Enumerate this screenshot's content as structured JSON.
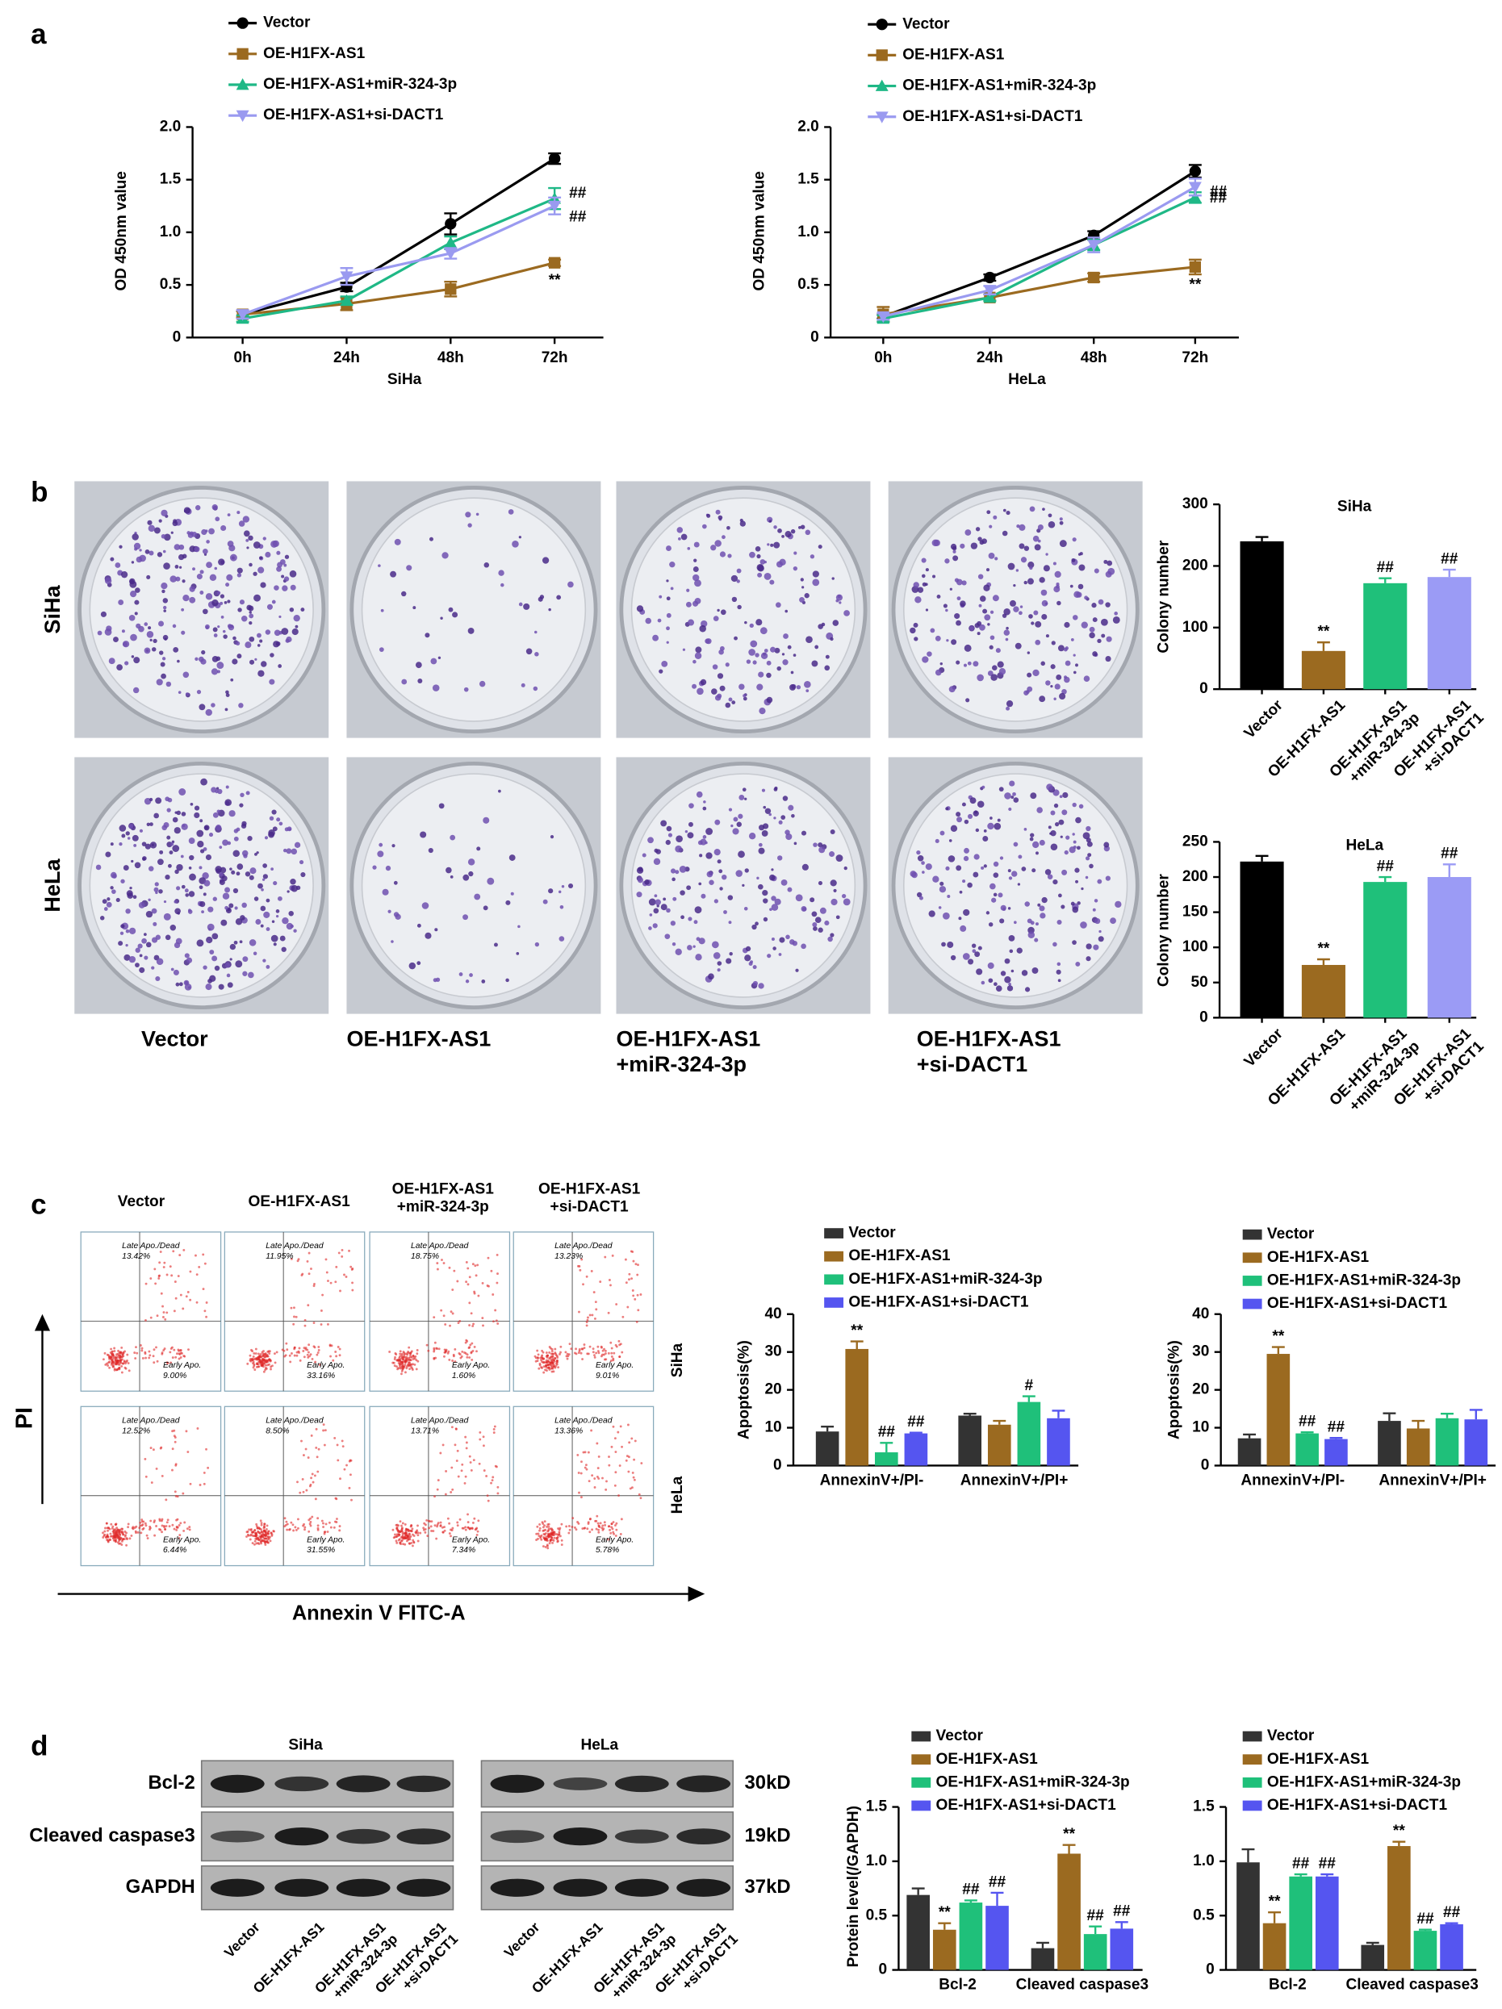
{
  "panel_labels": [
    "a",
    "b",
    "c",
    "d"
  ],
  "colony": {
    "rows": [
      "SiHa",
      "HeLa"
    ],
    "columns": [
      "Vector",
      "OE-H1FX-AS1",
      "OE-H1FX-AS1\n+miR-324-3p",
      "OE-H1FX-AS1\n+si-DACT1"
    ]
  },
  "flow": {
    "columns": [
      "Vector",
      "OE-H1FX-AS1",
      "OE-H1FX-AS1\n+miR-324-3p",
      "OE-H1FX-AS1\n+si-DACT1"
    ],
    "rows": [
      "SiHa",
      "HeLa"
    ],
    "late_label": "Late Apo./Dead",
    "early_label": "Early Apo.",
    "late": [
      [
        "13.42%",
        "11.95%",
        "18.75%",
        "13.23%"
      ],
      [
        "12.52%",
        "8.50%",
        "13.71%",
        "13.36%"
      ]
    ],
    "early": [
      [
        "9.00%",
        "33.16%",
        "1.60%",
        "9.01%"
      ],
      [
        "6.44%",
        "31.55%",
        "7.34%",
        "5.78%"
      ]
    ],
    "y_axis": "PI",
    "x_axis": "Annexin V FITC-A"
  },
  "western": {
    "cell_lines": [
      "SiHa",
      "HeLa"
    ],
    "proteins": [
      "Bcl-2",
      "Cleaved caspase3",
      "GAPDH"
    ],
    "sizes": [
      "30kD",
      "19kD",
      "37kD"
    ],
    "lanes": [
      "Vector",
      "OE-H1FX-AS1",
      "OE-H1FX-AS1\n+miR-324-3p",
      "OE-H1FX-AS1\n+si-DACT1"
    ]
  },
  "chart_data": [
    {
      "type": "line",
      "x_label": "SiHa",
      "y_label": "OD 450nm value",
      "categories": [
        "0h",
        "24h",
        "48h",
        "72h"
      ],
      "ylim": [
        0,
        2
      ],
      "yticks": [
        0,
        0.5,
        {
          "value": 1,
          "label": "1.0"
        },
        1.5,
        {
          "value": 2,
          "label": "2.0"
        }
      ],
      "series": [
        {
          "name": "Vector",
          "color": "#000000",
          "marker": "circle",
          "values": [
            0.22,
            0.48,
            1.08,
            1.7
          ],
          "errors": [
            0.03,
            0.04,
            0.1,
            0.05
          ]
        },
        {
          "name": "OE-H1FX-AS1",
          "color": "#9b6a20",
          "marker": "square",
          "values": [
            0.22,
            0.32,
            0.46,
            0.71
          ],
          "errors": [
            0.03,
            0.06,
            0.07,
            0.03
          ],
          "annotations": [
            null,
            null,
            null,
            "**"
          ]
        },
        {
          "name": "OE-H1FX-AS1+miR-324-3p",
          "color": "#1fb886",
          "marker": "triangle-up",
          "values": [
            0.18,
            0.35,
            0.9,
            1.32
          ],
          "errors": [
            0.03,
            0.04,
            0.06,
            0.1
          ],
          "annotations": [
            null,
            null,
            null,
            "##"
          ]
        },
        {
          "name": "OE-H1FX-AS1+si-DACT1",
          "color": "#9a9af0",
          "marker": "triangle-down",
          "values": [
            0.22,
            0.58,
            0.8,
            1.25
          ],
          "errors": [
            0.04,
            0.08,
            0.05,
            0.08
          ],
          "annotations": [
            null,
            null,
            null,
            "##"
          ]
        }
      ]
    },
    {
      "type": "line",
      "x_label": "HeLa",
      "y_label": "OD 450nm value",
      "categories": [
        "0h",
        "24h",
        "48h",
        "72h"
      ],
      "ylim": [
        0,
        2
      ],
      "yticks": [
        0,
        0.5,
        {
          "value": 1,
          "label": "1.0"
        },
        1.5,
        {
          "value": 2,
          "label": "2.0"
        }
      ],
      "series": [
        {
          "name": "Vector",
          "color": "#000000",
          "marker": "circle",
          "values": [
            0.2,
            0.57,
            0.97,
            1.58
          ],
          "errors": [
            0.02,
            0.03,
            0.04,
            0.06
          ]
        },
        {
          "name": "OE-H1FX-AS1",
          "color": "#9b6a20",
          "marker": "square",
          "values": [
            0.22,
            0.38,
            0.57,
            0.67
          ],
          "errors": [
            0.07,
            0.03,
            0.04,
            0.07
          ],
          "annotations": [
            null,
            null,
            null,
            "**"
          ]
        },
        {
          "name": "OE-H1FX-AS1+miR-324-3p",
          "color": "#1fb886",
          "marker": "triangle-up",
          "values": [
            0.18,
            0.38,
            0.88,
            1.33
          ],
          "errors": [
            0.03,
            0.03,
            0.05,
            0.05
          ],
          "annotations": [
            null,
            null,
            null,
            "##"
          ]
        },
        {
          "name": "OE-H1FX-AS1+si-DACT1",
          "color": "#9a9af0",
          "marker": "triangle-down",
          "values": [
            0.2,
            0.45,
            0.88,
            1.43
          ],
          "errors": [
            0.03,
            0.04,
            0.07,
            0.08
          ],
          "annotations": [
            null,
            null,
            null,
            "##"
          ]
        }
      ]
    },
    {
      "type": "bar",
      "title": "SiHa",
      "y_label": "Colony number",
      "categories": [
        "Vector",
        "OE-H1FX-AS1",
        "OE-H1FX-AS1\n+miR-324-3p",
        "OE-H1FX-AS1\n+si-DACT1"
      ],
      "values": [
        240,
        62,
        172,
        182
      ],
      "errors": [
        7,
        14,
        8,
        12
      ],
      "annotations": [
        null,
        "**",
        "##",
        "##"
      ],
      "colors": [
        "#000000",
        "#9b6a20",
        "#1fc07a",
        "#9b9bf5"
      ],
      "ylim": [
        0,
        300
      ],
      "yticks": [
        0,
        100,
        200,
        300
      ]
    },
    {
      "type": "bar",
      "title": "HeLa",
      "y_label": "Colony number",
      "categories": [
        "Vector",
        "OE-H1FX-AS1",
        "OE-H1FX-AS1\n+miR-324-3p",
        "OE-H1FX-AS1\n+si-DACT1"
      ],
      "values": [
        222,
        75,
        193,
        200
      ],
      "errors": [
        8,
        8,
        7,
        18
      ],
      "annotations": [
        null,
        "**",
        "##",
        "##"
      ],
      "colors": [
        "#000000",
        "#9b6a20",
        "#1fc07a",
        "#9b9bf5"
      ],
      "ylim": [
        0,
        250
      ],
      "yticks": [
        0,
        50,
        100,
        150,
        200,
        250
      ]
    },
    {
      "type": "bar",
      "y_label": "Apoptosis(%)",
      "categories": [
        "AnnexinV+/PI-",
        "AnnexinV+/PI+"
      ],
      "ylim": [
        0,
        40
      ],
      "yticks": [
        0,
        10,
        20,
        30,
        40
      ],
      "series": [
        {
          "name": "Vector",
          "color": "#333333",
          "values": [
            9,
            13.2
          ],
          "errors": [
            1.3,
            0.5
          ]
        },
        {
          "name": "OE-H1FX-AS1",
          "color": "#9b6a20",
          "values": [
            30.8,
            10.8
          ],
          "errors": [
            2,
            1
          ],
          "annotations": [
            "**",
            null
          ]
        },
        {
          "name": "OE-H1FX-AS1+miR-324-3p",
          "color": "#1fc07a",
          "values": [
            3.5,
            16.8
          ],
          "errors": [
            2.5,
            1.5
          ],
          "annotations": [
            "##",
            "#"
          ]
        },
        {
          "name": "OE-H1FX-AS1+si-DACT1",
          "color": "#5555f0",
          "values": [
            8.5,
            12.5
          ],
          "errors": [
            0.2,
            2
          ],
          "annotations": [
            "##",
            null
          ]
        }
      ]
    },
    {
      "type": "bar",
      "y_label": "Apoptosis(%)",
      "categories": [
        "AnnexinV+/PI-",
        "AnnexinV+/PI+"
      ],
      "ylim": [
        0,
        40
      ],
      "yticks": [
        0,
        10,
        20,
        30,
        40
      ],
      "series": [
        {
          "name": "Vector",
          "color": "#333333",
          "values": [
            7.2,
            11.8
          ],
          "errors": [
            1,
            2
          ]
        },
        {
          "name": "OE-H1FX-AS1",
          "color": "#9b6a20",
          "values": [
            29.5,
            9.8
          ],
          "errors": [
            1.8,
            2
          ],
          "annotations": [
            "**",
            null
          ]
        },
        {
          "name": "OE-H1FX-AS1+miR-324-3p",
          "color": "#1fc07a",
          "values": [
            8.5,
            12.5
          ],
          "errors": [
            0.3,
            1.2
          ],
          "annotations": [
            "##",
            null
          ]
        },
        {
          "name": "OE-H1FX-AS1+si-DACT1",
          "color": "#5555f0",
          "values": [
            7,
            12.2
          ],
          "errors": [
            0.3,
            2.5
          ],
          "annotations": [
            "##",
            null
          ]
        }
      ]
    },
    {
      "type": "bar",
      "y_label": "Protein level(/GAPDH)",
      "categories": [
        "Bcl-2",
        "Cleaved caspase3"
      ],
      "ylim": [
        0,
        1.5
      ],
      "yticks": [
        0,
        0.5,
        {
          "value": 1,
          "label": "1.0"
        },
        1.5
      ],
      "series": [
        {
          "name": "Vector",
          "color": "#333333",
          "values": [
            0.69,
            0.2
          ],
          "errors": [
            0.06,
            0.05
          ]
        },
        {
          "name": "OE-H1FX-AS1",
          "color": "#9b6a20",
          "values": [
            0.37,
            1.07
          ],
          "errors": [
            0.06,
            0.08
          ],
          "annotations": [
            "**",
            "**"
          ]
        },
        {
          "name": "OE-H1FX-AS1+miR-324-3p",
          "color": "#1fc07a",
          "values": [
            0.62,
            0.33
          ],
          "errors": [
            0.02,
            0.07
          ],
          "annotations": [
            "##",
            "##"
          ]
        },
        {
          "name": "OE-H1FX-AS1+si-DACT1",
          "color": "#5555f0",
          "values": [
            0.59,
            0.38
          ],
          "errors": [
            0.12,
            0.06
          ],
          "annotations": [
            "##",
            "##"
          ]
        }
      ]
    },
    {
      "type": "bar",
      "categories": [
        "Bcl-2",
        "Cleaved caspase3"
      ],
      "ylim": [
        0,
        1.5
      ],
      "yticks": [
        0,
        0.5,
        {
          "value": 1,
          "label": "1.0"
        },
        1.5
      ],
      "series": [
        {
          "name": "Vector",
          "color": "#333333",
          "values": [
            0.99,
            0.23
          ],
          "errors": [
            0.12,
            0.02
          ]
        },
        {
          "name": "OE-H1FX-AS1",
          "color": "#9b6a20",
          "values": [
            0.43,
            1.14
          ],
          "errors": [
            0.1,
            0.04
          ],
          "annotations": [
            "**",
            "**"
          ]
        },
        {
          "name": "OE-H1FX-AS1+miR-324-3p",
          "color": "#1fc07a",
          "values": [
            0.86,
            0.36
          ],
          "errors": [
            0.02,
            0.01
          ],
          "annotations": [
            "##",
            "##"
          ]
        },
        {
          "name": "OE-H1FX-AS1+si-DACT1",
          "color": "#5555f0",
          "values": [
            0.86,
            0.42
          ],
          "errors": [
            0.02,
            0.01
          ],
          "annotations": [
            "##",
            "##"
          ]
        }
      ]
    }
  ]
}
